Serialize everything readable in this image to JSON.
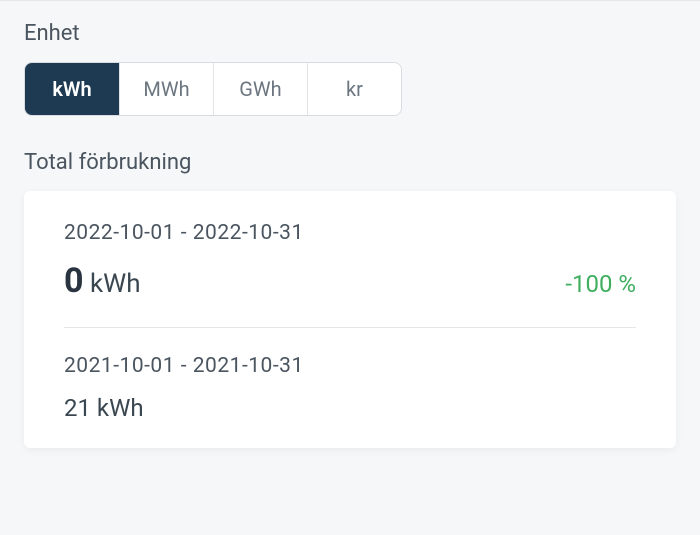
{
  "unit_selector": {
    "label": "Enhet",
    "options": [
      "kWh",
      "MWh",
      "GWh",
      "kr"
    ],
    "selected_index": 0,
    "colors": {
      "active_bg": "#1e3a52",
      "active_text": "#ffffff",
      "inactive_bg": "#ffffff",
      "inactive_text": "#6b7680",
      "border": "#d8dce0"
    }
  },
  "consumption": {
    "title": "Total förbrukning",
    "current": {
      "date_range": "2022-10-01 - 2022-10-31",
      "value": "0",
      "unit": "kWh",
      "delta": "-100 %",
      "delta_color": "#3fae5f"
    },
    "previous": {
      "date_range": "2021-10-01 - 2021-10-31",
      "value_display": "21 kWh"
    }
  },
  "styling": {
    "page_bg": "#f6f7f8",
    "card_bg": "#ffffff",
    "text_primary": "#3a4750",
    "text_secondary": "#4a5560",
    "divider": "#e4e6e8"
  }
}
